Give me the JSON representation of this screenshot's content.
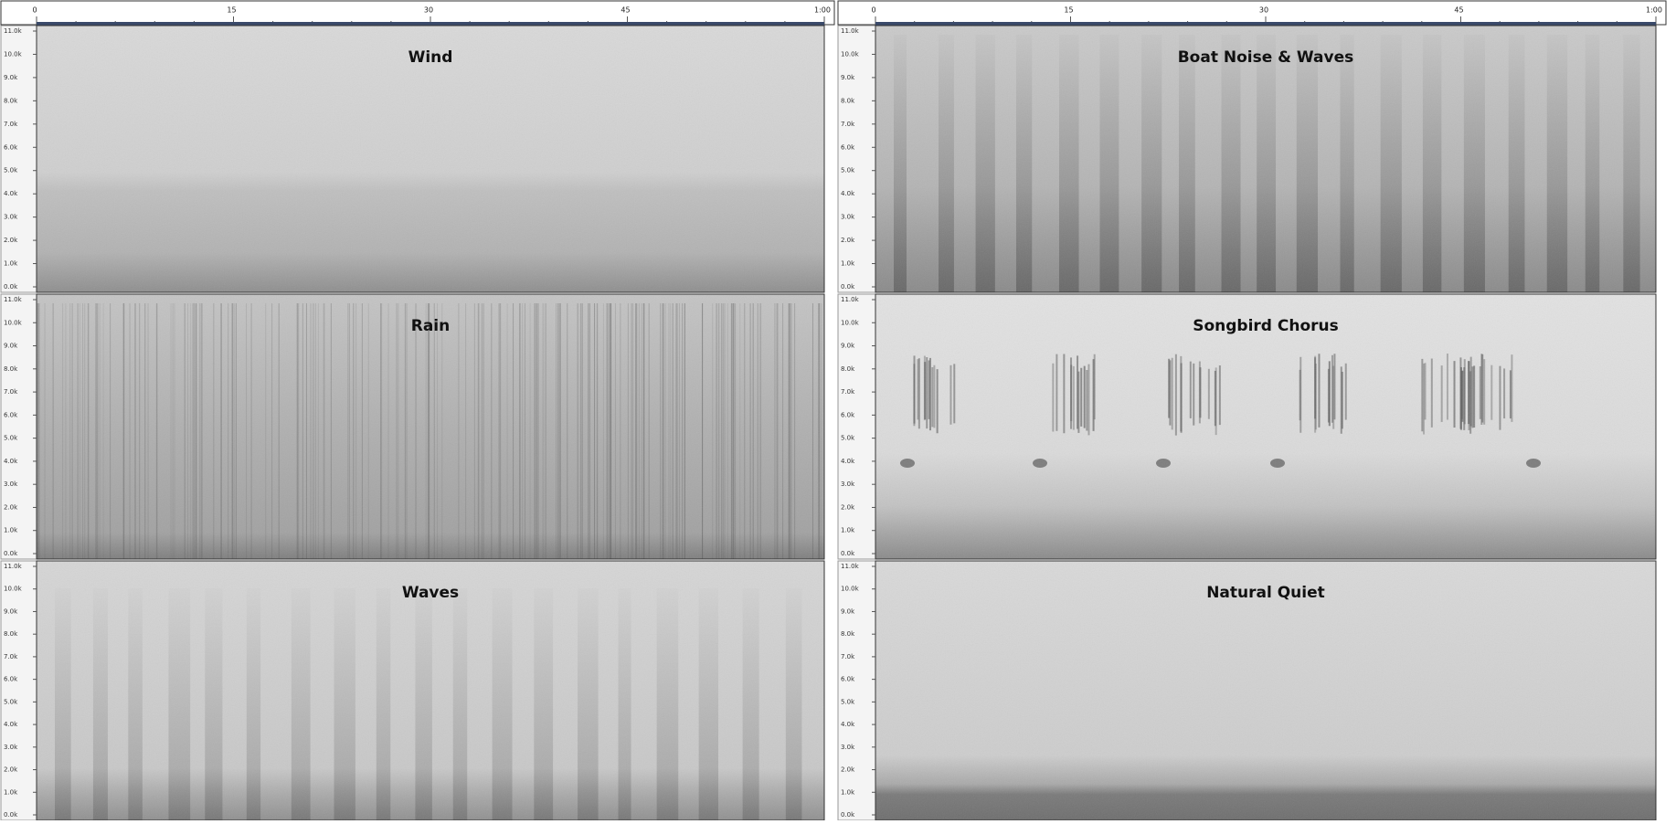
{
  "time_ruler": {
    "labels": [
      "0",
      "15",
      "30",
      "45",
      "1:00"
    ]
  },
  "freq_labels": [
    "11.0k",
    "10.0k",
    "9.0k",
    "8.0k",
    "7.0k",
    "6.0k",
    "5.0k",
    "4.0k",
    "3.0k",
    "2.0k",
    "1.0k",
    "0.0k"
  ],
  "panels": [
    {
      "title": "Wind"
    },
    {
      "title": "Boat Noise & Waves"
    },
    {
      "title": "Rain"
    },
    {
      "title": "Songbird Chorus"
    },
    {
      "title": "Waves"
    },
    {
      "title": "Natural Quiet"
    }
  ]
}
